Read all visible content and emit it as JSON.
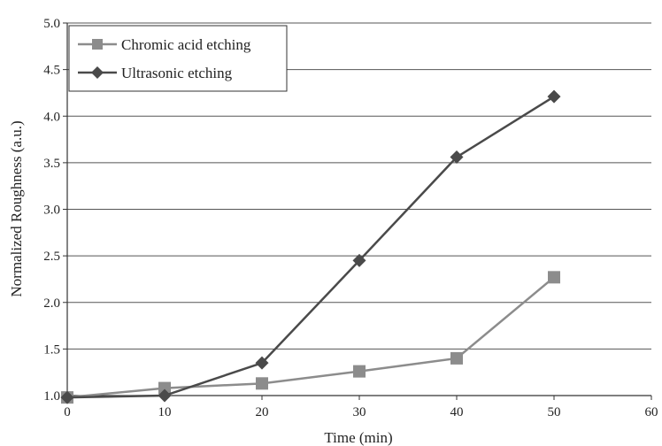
{
  "chart_data": {
    "type": "line",
    "title": "",
    "xlabel": "Time (min)",
    "ylabel": "Normalized Roughness  (a.u.)",
    "xlim": [
      0,
      60
    ],
    "ylim": [
      1.0,
      5.0
    ],
    "xticks": [
      "0",
      "10",
      "20",
      "30",
      "40",
      "50",
      "60"
    ],
    "yticks": [
      "1.0",
      "1.5",
      "2.0",
      "2.5",
      "3.0",
      "3.5",
      "4.0",
      "4.5",
      "5.0"
    ],
    "grid": "horizontal",
    "legend_position": "top-left",
    "series": [
      {
        "name": "Chromic acid etching",
        "marker": "square",
        "color": "#8c8c8c",
        "x": [
          0,
          10,
          20,
          30,
          40,
          50
        ],
        "y": [
          0.98,
          1.08,
          1.13,
          1.26,
          1.4,
          2.27
        ]
      },
      {
        "name": "Ultrasonic etching",
        "marker": "diamond",
        "color": "#4a4a4a",
        "x": [
          0,
          10,
          20,
          30,
          40,
          50
        ],
        "y": [
          0.98,
          1.0,
          1.35,
          2.45,
          3.56,
          4.21
        ]
      }
    ]
  }
}
